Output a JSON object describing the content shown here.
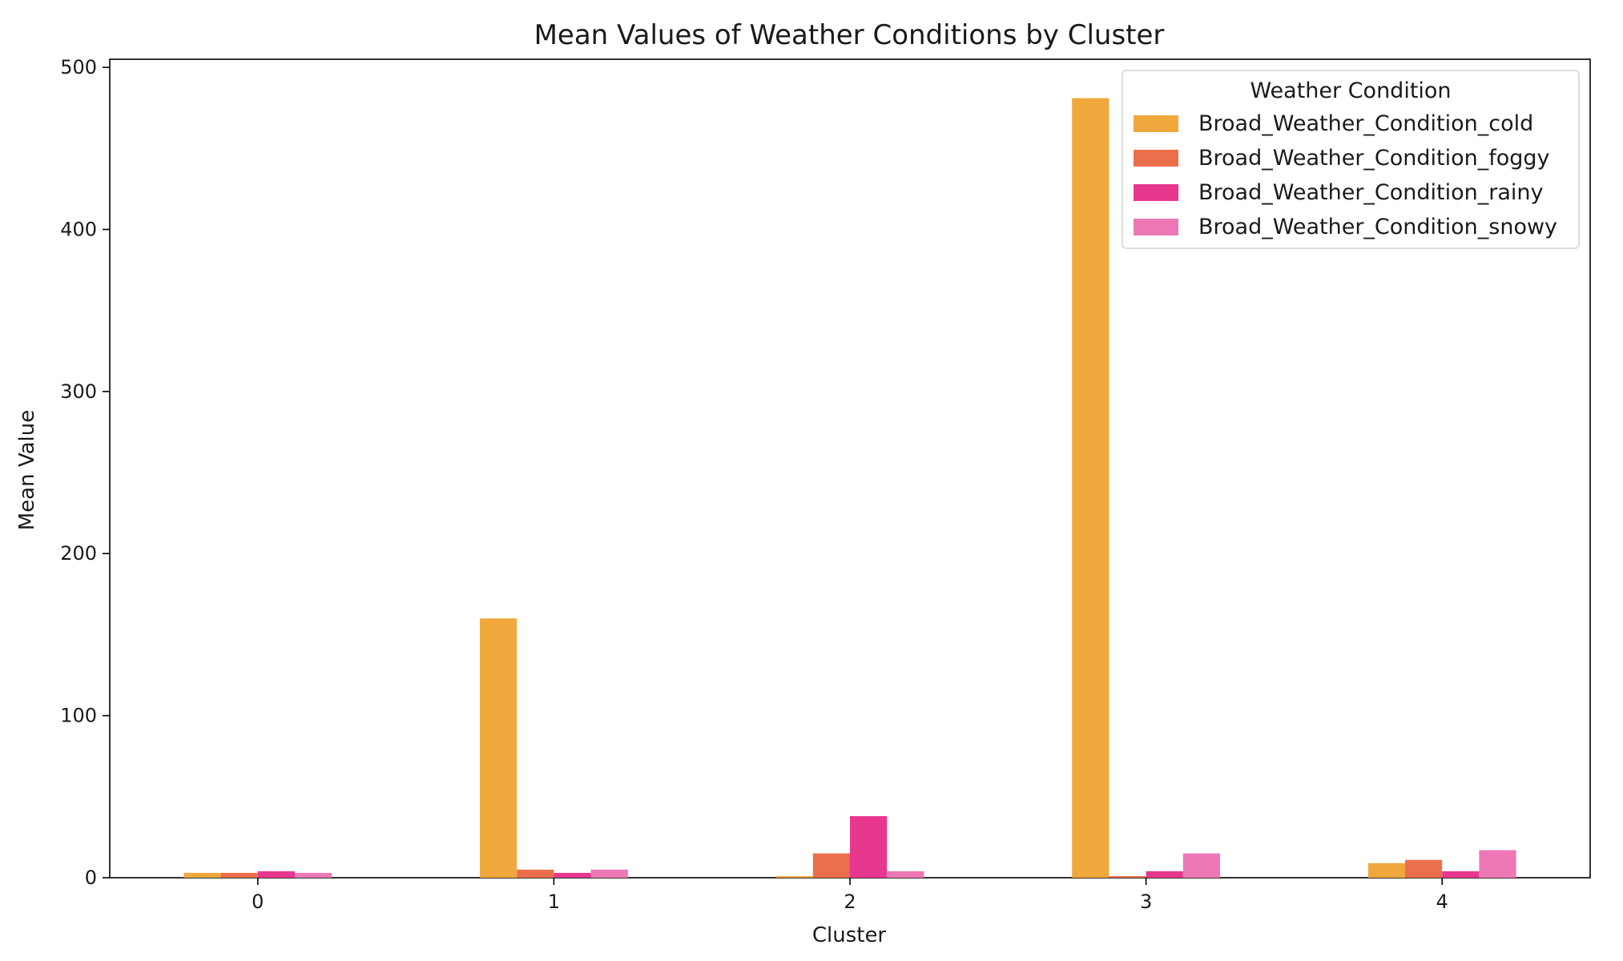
{
  "chart_data": {
    "type": "bar",
    "title": "Mean Values of Weather Conditions by Cluster",
    "xlabel": "Cluster",
    "ylabel": "Mean Value",
    "categories": [
      "0",
      "1",
      "2",
      "3",
      "4"
    ],
    "ylim": [
      0,
      505
    ],
    "yticks": [
      0,
      100,
      200,
      300,
      400,
      500
    ],
    "grid": false,
    "legend": {
      "title": "Weather Condition",
      "placement": "top-right"
    },
    "series": [
      {
        "name": "Broad_Weather_Condition_cold",
        "color": "#f0a83c",
        "values": [
          3,
          160,
          1,
          481,
          9
        ]
      },
      {
        "name": "Broad_Weather_Condition_foggy",
        "color": "#ec6f4c",
        "values": [
          3,
          5,
          15,
          1,
          11
        ]
      },
      {
        "name": "Broad_Weather_Condition_rainy",
        "color": "#e8378f",
        "values": [
          4,
          3,
          38,
          4,
          4
        ]
      },
      {
        "name": "Broad_Weather_Condition_snowy",
        "color": "#ee78b5",
        "values": [
          3,
          5,
          4,
          15,
          17
        ]
      }
    ]
  }
}
